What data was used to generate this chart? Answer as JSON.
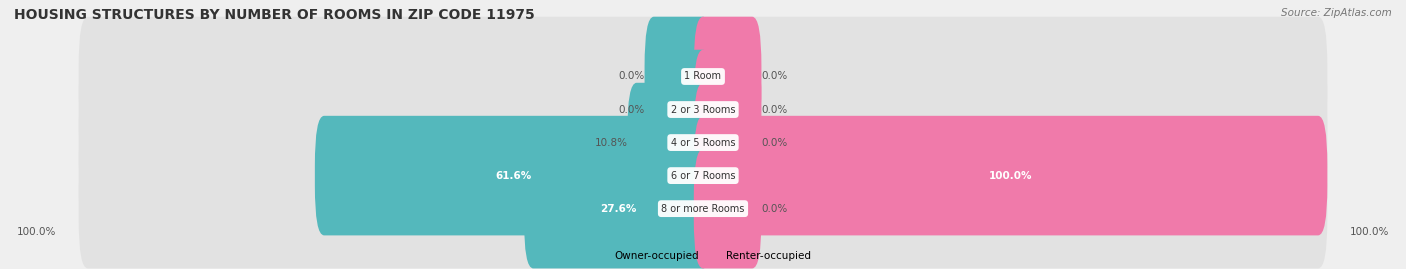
{
  "title": "HOUSING STRUCTURES BY NUMBER OF ROOMS IN ZIP CODE 11975",
  "source": "Source: ZipAtlas.com",
  "categories": [
    "1 Room",
    "2 or 3 Rooms",
    "4 or 5 Rooms",
    "6 or 7 Rooms",
    "8 or more Rooms"
  ],
  "owner_values": [
    0.0,
    0.0,
    10.8,
    61.6,
    27.6
  ],
  "renter_values": [
    0.0,
    0.0,
    0.0,
    100.0,
    0.0
  ],
  "owner_color": "#54b8bc",
  "renter_color": "#f07aaa",
  "bg_color": "#efefef",
  "bar_bg_color": "#e2e2e2",
  "label_color_dark": "#555555",
  "label_color_white": "#ffffff",
  "axis_max": 100.0,
  "min_bar_visual": 8.0,
  "title_fontsize": 10,
  "source_fontsize": 7.5,
  "bar_label_fontsize": 7.5,
  "category_label_fontsize": 7,
  "legend_fontsize": 7.5,
  "bottom_label": "100.0%"
}
